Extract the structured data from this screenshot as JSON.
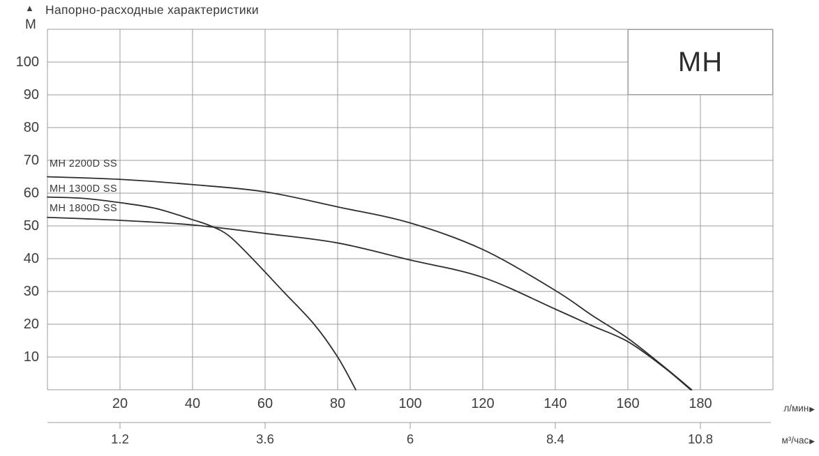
{
  "icons": {
    "arrow_up": "▲",
    "arrow_right": "▶"
  },
  "colors": {
    "grid": "#9b9b9b",
    "curve": "#2d2d2d",
    "text": "#3b3b3b",
    "background": "#ffffff"
  },
  "chart_data": {
    "type": "line",
    "title": "Напорно-расходные характеристики",
    "brand": "МН",
    "grid": true,
    "y_axis": {
      "unit": "М",
      "range": [
        0,
        110
      ],
      "ticks": [
        100,
        90,
        80,
        70,
        60,
        50,
        40,
        30,
        20,
        10
      ]
    },
    "x_axis_primary": {
      "unit": "л/мин",
      "range": [
        0,
        200
      ],
      "ticks": [
        20,
        40,
        60,
        80,
        100,
        120,
        140,
        160,
        180
      ]
    },
    "x_axis_secondary": {
      "unit": "м³/час",
      "ticks": [
        1.2,
        3.6,
        6,
        8.4,
        10.8
      ],
      "tick_positions_lmin": [
        20,
        60,
        100,
        140,
        180
      ]
    },
    "series": [
      {
        "name": "MH 2200D SS",
        "points": [
          [
            0,
            65
          ],
          [
            20,
            64.2
          ],
          [
            40,
            62.6
          ],
          [
            60,
            60.4
          ],
          [
            80,
            55.8
          ],
          [
            100,
            50.9
          ],
          [
            120,
            42.8
          ],
          [
            140,
            30.3
          ],
          [
            150,
            22.8
          ],
          [
            160,
            15.7
          ],
          [
            170,
            7
          ],
          [
            177.6,
            0
          ]
        ]
      },
      {
        "name": "MH 1300D SS",
        "points": [
          [
            0,
            58.8
          ],
          [
            10,
            58.4
          ],
          [
            20,
            57.1
          ],
          [
            30,
            55.3
          ],
          [
            40,
            51.9
          ],
          [
            45,
            50
          ],
          [
            50,
            47
          ],
          [
            56.5,
            40
          ],
          [
            65,
            30
          ],
          [
            73.5,
            20
          ],
          [
            80,
            10
          ],
          [
            85,
            0
          ]
        ]
      },
      {
        "name": "MH 1800D SS",
        "points": [
          [
            0,
            52.6
          ],
          [
            20,
            51.7
          ],
          [
            40,
            50.3
          ],
          [
            60,
            47.7
          ],
          [
            80,
            44.8
          ],
          [
            100,
            39.6
          ],
          [
            120,
            34.3
          ],
          [
            140,
            24.6
          ],
          [
            150,
            19.6
          ],
          [
            160,
            14.7
          ],
          [
            170,
            6.8
          ],
          [
            177.3,
            0
          ]
        ]
      }
    ]
  }
}
